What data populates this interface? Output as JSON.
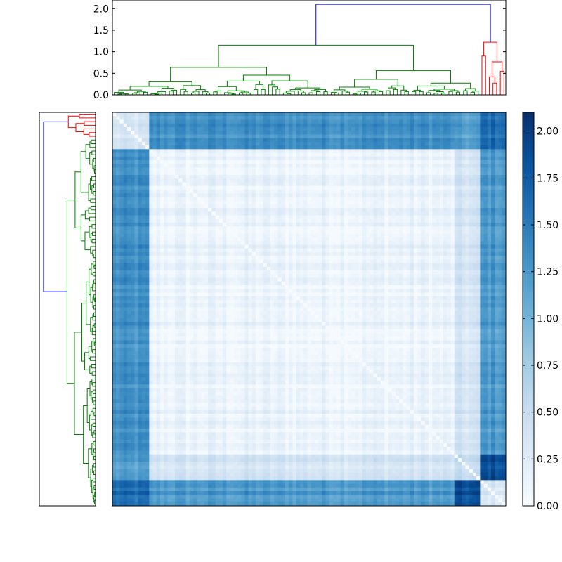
{
  "chart_data": [
    {
      "type": "dendrogram",
      "orientation": "top",
      "ylim": [
        0,
        2.2
      ],
      "yticks": [
        0.0,
        0.5,
        1.0,
        1.5,
        2.0
      ],
      "ytick_labels": [
        "0.0",
        "0.5",
        "1.0",
        "1.5",
        "2.0"
      ],
      "root_merge_height": 2.1,
      "cluster_colors": {
        "main": "#008000",
        "minor": "#ff0000",
        "link": "#0000ff"
      },
      "leaf_order_groups": [
        {
          "name": "",
          "leaves": 100,
          "color": "#008000",
          "merge_height": 1.15
        },
        {
          "name": "",
          "leaves": 7,
          "color": "#ff0000",
          "merge_height": 1.22
        }
      ],
      "internal_merges": [
        1.15,
        0.83,
        0.6,
        0.52,
        0.5,
        0.3,
        0.25,
        1.22,
        0.55,
        0.2
      ]
    },
    {
      "type": "dendrogram",
      "orientation": "left",
      "root_merge_height": 2.1,
      "cluster_colors": {
        "main": "#008000",
        "minor": "#ff0000",
        "link": "#0000ff"
      }
    },
    {
      "type": "heatmap",
      "description_units": "pairwise distance",
      "matrix_size": 107,
      "blocks": [
        {
          "start": 0,
          "end": 10
        },
        {
          "start": 10,
          "end": 93
        },
        {
          "start": 93,
          "end": 100
        },
        {
          "start": 100,
          "end": 107
        }
      ],
      "block_distance_matrix": [
        [
          0.3,
          1.3,
          1.15,
          1.6
        ],
        [
          1.3,
          0.12,
          0.35,
          1.25
        ],
        [
          1.15,
          0.35,
          0.45,
          1.85
        ],
        [
          1.6,
          1.25,
          1.85,
          0.35
        ]
      ],
      "colormap": "Blues",
      "vmin": 0.0,
      "vmax": 2.1
    },
    {
      "type": "colorbar",
      "colormap": "Blues",
      "range": [
        0.0,
        2.1
      ],
      "ticks": [
        0.0,
        0.25,
        0.5,
        0.75,
        1.0,
        1.25,
        1.5,
        1.75,
        2.0
      ],
      "tick_labels": [
        "0.00",
        "0.25",
        "0.50",
        "0.75",
        "1.00",
        "1.25",
        "1.50",
        "1.75",
        "2.00"
      ]
    }
  ]
}
